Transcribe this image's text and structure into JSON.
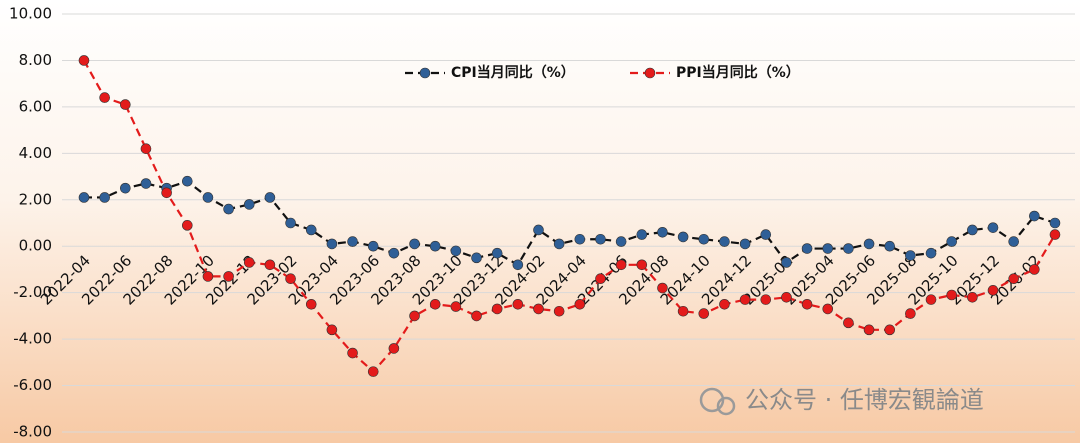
{
  "chart_data": {
    "type": "line",
    "categories": [
      "2022-04",
      null,
      "2022-06",
      null,
      "2022-08",
      null,
      "2022-10",
      null,
      "2022-12",
      null,
      "2023-02",
      null,
      "2023-04",
      null,
      "2023-06",
      null,
      "2023-08",
      null,
      "2023-10",
      null,
      "2023-12",
      null,
      "2024-02",
      null,
      "2024-04",
      null,
      "2024-06",
      null,
      "2024-08",
      null,
      "2024-10",
      null,
      "2024-12",
      null,
      "2025-02",
      null,
      "2025-04",
      null,
      "2025-06",
      null,
      "2025-08",
      null,
      "2025-10",
      null,
      "2025-12",
      null,
      "2026-02",
      null
    ],
    "series": [
      {
        "name": "CPI当月同比（%）",
        "color": "#111111",
        "marker_color": "#2f5f97",
        "values": [
          2.1,
          2.1,
          2.5,
          2.7,
          2.5,
          2.8,
          2.1,
          1.6,
          1.8,
          2.1,
          1.0,
          0.7,
          0.1,
          0.2,
          0.0,
          -0.3,
          0.1,
          0.0,
          -0.2,
          -0.5,
          -0.3,
          -0.8,
          0.7,
          0.1,
          0.3,
          0.3,
          0.2,
          0.5,
          0.6,
          0.4,
          0.3,
          0.2,
          0.1,
          0.5,
          -0.7,
          -0.1,
          -0.1,
          -0.1,
          0.1,
          0.0,
          -0.4,
          -0.3,
          0.2,
          0.7,
          0.8,
          0.2,
          1.3,
          1.0
        ]
      },
      {
        "name": "PPI当月同比（%）",
        "color": "#e31b1b",
        "marker_color": "#e31b1b",
        "values": [
          8.0,
          6.4,
          6.1,
          4.2,
          2.3,
          0.9,
          -1.3,
          -1.3,
          -0.7,
          -0.8,
          -1.4,
          -2.5,
          -3.6,
          -4.6,
          -5.4,
          -4.4,
          -3.0,
          -2.5,
          -2.6,
          -3.0,
          -2.7,
          -2.5,
          -2.7,
          -2.8,
          -2.5,
          -1.4,
          -0.8,
          -0.8,
          -1.8,
          -2.8,
          -2.9,
          -2.5,
          -2.3,
          -2.3,
          -2.2,
          -2.5,
          -2.7,
          -3.3,
          -3.6,
          -3.6,
          -2.9,
          -2.3,
          -2.1,
          -2.2,
          -1.9,
          -1.4,
          -1.0,
          0.5
        ]
      }
    ],
    "ylim": [
      -8,
      10
    ],
    "yticks": [
      {
        "value": -8,
        "label": "-8.00"
      },
      {
        "value": -6,
        "label": "-6.00"
      },
      {
        "value": -4,
        "label": "-4.00"
      },
      {
        "value": -2,
        "label": "-2.00"
      },
      {
        "value": 0,
        "label": "0.00"
      },
      {
        "value": 2,
        "label": "2.00"
      },
      {
        "value": 4,
        "label": "4.00"
      },
      {
        "value": 6,
        "label": "6.00"
      },
      {
        "value": 8,
        "label": "8.00"
      },
      {
        "value": 10,
        "label": "10.00"
      }
    ],
    "grid": true,
    "watermark": "公众号 · 任博宏観論道"
  }
}
